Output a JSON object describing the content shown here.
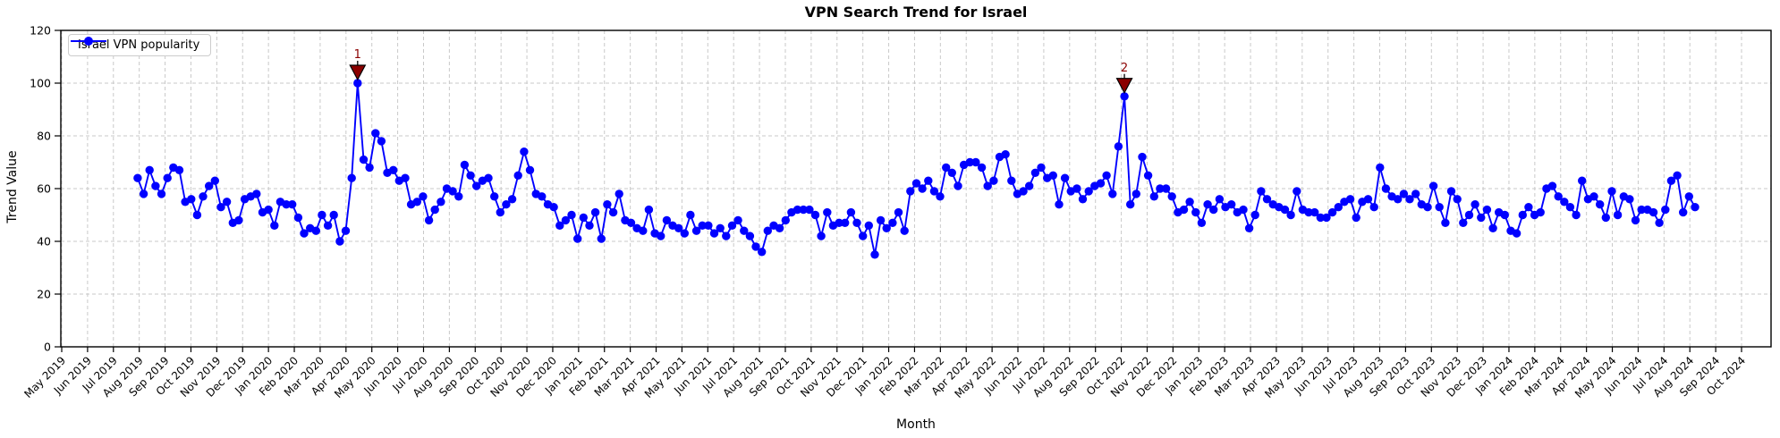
{
  "colors": {
    "line": "#0000ff",
    "annotation": "#8b0000",
    "grid": "#c9c9c9",
    "spine": "#000000",
    "text": "#000000",
    "legend_border": "#cccccc",
    "background": "#ffffff"
  },
  "legend": {
    "label": "Israel VPN popularity"
  },
  "chart_data": {
    "type": "line",
    "title": "VPN Search Trend for Israel",
    "xlabel": "Month",
    "ylabel": "Trend Value",
    "ylim": [
      0,
      120
    ],
    "yticks": [
      0,
      20,
      40,
      60,
      80,
      100,
      120
    ],
    "grid": true,
    "grid_style": "dashed",
    "legend_position": "upper left",
    "x_tick_labels": [
      "May 2019",
      "Jun 2019",
      "Jul 2019",
      "Aug 2019",
      "Sep 2019",
      "Oct 2019",
      "Nov 2019",
      "Dec 2019",
      "Jan 2020",
      "Feb 2020",
      "Mar 2020",
      "Apr 2020",
      "May 2020",
      "Jun 2020",
      "Jul 2020",
      "Aug 2020",
      "Sep 2020",
      "Oct 2020",
      "Nov 2020",
      "Dec 2020",
      "Jan 2021",
      "Feb 2021",
      "Mar 2021",
      "Apr 2021",
      "May 2021",
      "Jun 2021",
      "Jul 2021",
      "Aug 2021",
      "Sep 2021",
      "Oct 2021",
      "Nov 2021",
      "Dec 2021",
      "Jan 2022",
      "Feb 2022",
      "Mar 2022",
      "Apr 2022",
      "May 2022",
      "Jun 2022",
      "Jul 2022",
      "Aug 2022",
      "Sep 2022",
      "Oct 2022",
      "Nov 2022",
      "Dec 2022",
      "Jan 2023",
      "Feb 2023",
      "Mar 2023",
      "Apr 2023",
      "May 2023",
      "Jun 2023",
      "Jul 2023",
      "Aug 2023",
      "Sep 2023",
      "Oct 2023",
      "Nov 2023",
      "Dec 2023",
      "Jan 2024",
      "Feb 2024",
      "Mar 2024",
      "Apr 2024",
      "May 2024",
      "Jun 2024",
      "Jul 2024",
      "Aug 2024",
      "Sep 2024",
      "Oct 2024"
    ],
    "series": [
      {
        "name": "Israel VPN popularity",
        "color": "#0000ff",
        "marker": "circle",
        "x_unit": "weekly",
        "x_month_start": 2.94,
        "x_month_end": 63.2,
        "values": [
          64,
          58,
          67,
          61,
          58,
          64,
          68,
          67,
          55,
          56,
          50,
          57,
          61,
          63,
          53,
          55,
          47,
          48,
          56,
          57,
          58,
          51,
          52,
          46,
          55,
          54,
          54,
          49,
          43,
          45,
          44,
          50,
          46,
          50,
          40,
          44,
          64,
          100,
          71,
          68,
          81,
          78,
          66,
          67,
          63,
          64,
          54,
          55,
          57,
          48,
          52,
          55,
          60,
          59,
          57,
          69,
          65,
          61,
          63,
          64,
          57,
          51,
          54,
          56,
          65,
          74,
          67,
          58,
          57,
          54,
          53,
          46,
          48,
          50,
          41,
          49,
          46,
          51,
          41,
          54,
          51,
          58,
          48,
          47,
          45,
          44,
          52,
          43,
          42,
          48,
          46,
          45,
          43,
          50,
          44,
          46,
          46,
          43,
          45,
          42,
          46,
          48,
          44,
          42,
          38,
          36,
          44,
          46,
          45,
          48,
          51,
          52,
          52,
          52,
          50,
          42,
          51,
          46,
          47,
          47,
          51,
          47,
          42,
          46,
          35,
          48,
          45,
          47,
          51,
          44,
          59,
          62,
          60,
          63,
          59,
          57,
          68,
          66,
          61,
          69,
          70,
          70,
          68,
          61,
          63,
          72,
          73,
          63,
          58,
          59,
          61,
          66,
          68,
          64,
          65,
          54,
          64,
          59,
          60,
          56,
          59,
          61,
          62,
          65,
          58,
          76,
          95,
          54,
          58,
          72,
          65,
          57,
          60,
          60,
          57,
          51,
          52,
          55,
          51,
          47,
          54,
          52,
          56,
          53,
          54,
          51,
          52,
          45,
          50,
          59,
          56,
          54,
          53,
          52,
          50,
          59,
          52,
          51,
          51,
          49,
          49,
          51,
          53,
          55,
          56,
          49,
          55,
          56,
          53,
          68,
          60,
          57,
          56,
          58,
          56,
          58,
          54,
          53,
          61,
          53,
          47,
          59,
          56,
          47,
          50,
          54,
          49,
          52,
          45,
          51,
          50,
          44,
          43,
          50,
          53,
          50,
          51,
          60,
          61,
          57,
          55,
          53,
          50,
          63,
          56,
          57,
          54,
          49,
          59,
          50,
          57,
          56,
          48,
          52,
          52,
          51,
          47,
          52,
          63,
          65,
          51,
          57,
          53
        ]
      }
    ],
    "annotations": [
      {
        "label": "1",
        "point_index": 37,
        "value": 100,
        "month": "Apr 2020",
        "marker": "triangle-down",
        "color": "#8b0000"
      },
      {
        "label": "2",
        "point_index": 166,
        "value": 95,
        "month": "Oct 2022",
        "marker": "triangle-down",
        "color": "#8b0000"
      }
    ]
  }
}
